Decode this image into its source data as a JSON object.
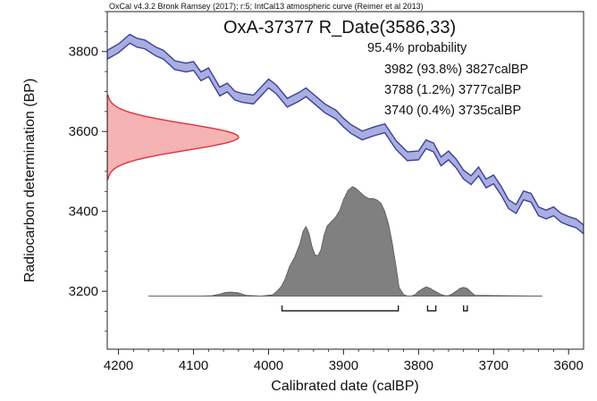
{
  "header": "OxCal v4.3.2 Bronk Ramsey (2017); r:5; IntCal13 atmospheric curve (Reimer et al 2013)",
  "result": {
    "title": "OxA-37377 R_Date(3586,33)",
    "probability_heading": "95.4% probability",
    "ranges": [
      "3982 (93.8%) 3827calBP",
      "3788 (1.2%) 3777calBP",
      "3740 (0.4%) 3735calBP"
    ]
  },
  "colors": {
    "curve_fill": "#a9aee0",
    "curve_stroke": "#3c3f9a",
    "measurement_fill": "#f6b3b3",
    "measurement_stroke": "#e0303a",
    "posterior_fill": "#808080",
    "posterior_stroke": "#555555"
  },
  "chart_data": {
    "type": "area",
    "title": "",
    "xlabel": "Calibrated date (calBP)",
    "ylabel": "Radiocarbon determination (BP)",
    "xlim": [
      4215,
      3580
    ],
    "ylim": [
      3055,
      3900
    ],
    "xticks": [
      4200,
      4100,
      4000,
      3900,
      3800,
      3700,
      3600
    ],
    "yticks": [
      3200,
      3400,
      3600,
      3800
    ],
    "calibration_curve": {
      "x": [
        4215,
        4200,
        4185,
        4175,
        4165,
        4150,
        4140,
        4125,
        4110,
        4100,
        4090,
        4080,
        4065,
        4055,
        4045,
        4035,
        4020,
        4010,
        4000,
        3990,
        3975,
        3960,
        3950,
        3940,
        3925,
        3910,
        3900,
        3890,
        3875,
        3860,
        3845,
        3830,
        3815,
        3800,
        3790,
        3780,
        3770,
        3760,
        3750,
        3740,
        3730,
        3720,
        3710,
        3700,
        3690,
        3680,
        3670,
        3660,
        3650,
        3640,
        3630,
        3620,
        3610,
        3600,
        3590,
        3580
      ],
      "y": [
        3792,
        3808,
        3832,
        3822,
        3818,
        3800,
        3792,
        3766,
        3760,
        3764,
        3738,
        3748,
        3700,
        3710,
        3690,
        3684,
        3680,
        3700,
        3720,
        3706,
        3672,
        3686,
        3698,
        3682,
        3658,
        3642,
        3622,
        3606,
        3590,
        3600,
        3608,
        3566,
        3538,
        3540,
        3568,
        3560,
        3525,
        3540,
        3520,
        3492,
        3478,
        3500,
        3470,
        3480,
        3452,
        3418,
        3406,
        3440,
        3434,
        3400,
        3392,
        3400,
        3384,
        3376,
        3370,
        3355
      ],
      "band_width": 22
    },
    "measurement": {
      "mean": 3586,
      "sd": 33,
      "baseline_x": 4215,
      "peak_x": 4040
    },
    "posterior": {
      "baseline_y": 3188,
      "baseline_x_range": [
        4160,
        3635
      ],
      "x": [
        4160,
        4090,
        4075,
        4065,
        4058,
        4050,
        4040,
        4030,
        4010,
        3995,
        3990,
        3983,
        3978,
        3972,
        3965,
        3958,
        3954,
        3950,
        3946,
        3942,
        3938,
        3934,
        3930,
        3926,
        3922,
        3916,
        3910,
        3905,
        3900,
        3894,
        3888,
        3884,
        3878,
        3872,
        3866,
        3860,
        3855,
        3850,
        3845,
        3840,
        3835,
        3830,
        3826,
        3820,
        3815,
        3810,
        3805,
        3800,
        3795,
        3790,
        3785,
        3780,
        3775,
        3770,
        3765,
        3760,
        3755,
        3750,
        3745,
        3740,
        3735,
        3730,
        3725,
        3635
      ],
      "y": [
        3188,
        3188,
        3189,
        3193,
        3197,
        3198,
        3196,
        3190,
        3188,
        3191,
        3198,
        3212,
        3230,
        3262,
        3286,
        3320,
        3350,
        3362,
        3345,
        3312,
        3291,
        3289,
        3305,
        3340,
        3363,
        3375,
        3387,
        3403,
        3430,
        3453,
        3462,
        3458,
        3448,
        3438,
        3432,
        3432,
        3428,
        3420,
        3400,
        3368,
        3320,
        3262,
        3210,
        3192,
        3188,
        3188,
        3191,
        3200,
        3206,
        3211,
        3208,
        3202,
        3197,
        3192,
        3189,
        3189,
        3194,
        3200,
        3207,
        3210,
        3207,
        3198,
        3190,
        3188
      ]
    },
    "hpd_ranges": [
      [
        3982,
        3827
      ],
      [
        3788,
        3777
      ],
      [
        3740,
        3735
      ]
    ],
    "grid": false,
    "legend": "none"
  }
}
